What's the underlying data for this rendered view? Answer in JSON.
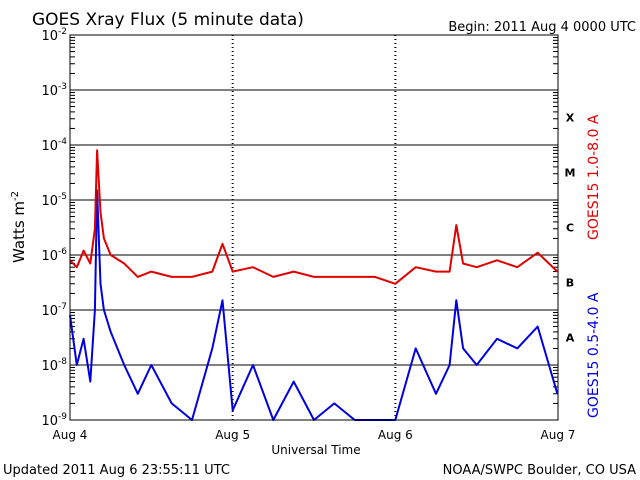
{
  "header": {
    "title": "GOES Xray Flux (5 minute data)",
    "begin": "Begin:  2011 Aug 4 0000 UTC"
  },
  "footer": {
    "updated": "Updated 2011 Aug  6 23:55:11 UTC",
    "credit": "NOAA/SWPC Boulder, CO USA"
  },
  "chart_data": {
    "type": "line",
    "title": "GOES Xray Flux (5 minute data)",
    "xlabel": "Universal Time",
    "ylabel": "Watts m",
    "ylabel_sup": "-2",
    "yscale": "log",
    "ylim": [
      1e-09,
      0.01
    ],
    "xlim": [
      "2011-08-04",
      "2011-08-07"
    ],
    "x_ticks": [
      "Aug 4",
      "Aug 5",
      "Aug 6",
      "Aug 7"
    ],
    "y_ticks": [
      {
        "base": "10",
        "exp": "-2"
      },
      {
        "base": "10",
        "exp": "-3"
      },
      {
        "base": "10",
        "exp": "-4"
      },
      {
        "base": "10",
        "exp": "-5"
      },
      {
        "base": "10",
        "exp": "-6"
      },
      {
        "base": "10",
        "exp": "-7"
      },
      {
        "base": "10",
        "exp": "-8"
      },
      {
        "base": "10",
        "exp": "-9"
      }
    ],
    "flare_classes": [
      "X",
      "M",
      "C",
      "B",
      "A"
    ],
    "grid": true,
    "series": [
      {
        "name": "GOES15 1.0-8.0 A",
        "color": "#e00000",
        "x": [
          "2011-08-04T00:00",
          "2011-08-04T01:00",
          "2011-08-04T02:00",
          "2011-08-04T03:00",
          "2011-08-04T03:40",
          "2011-08-04T04:00",
          "2011-08-04T04:30",
          "2011-08-04T05:00",
          "2011-08-04T06:00",
          "2011-08-04T08:00",
          "2011-08-04T10:00",
          "2011-08-04T12:00",
          "2011-08-04T15:00",
          "2011-08-04T18:00",
          "2011-08-04T21:00",
          "2011-08-04T22:30",
          "2011-08-05T00:00",
          "2011-08-05T03:00",
          "2011-08-05T06:00",
          "2011-08-05T09:00",
          "2011-08-05T12:00",
          "2011-08-05T15:00",
          "2011-08-05T18:00",
          "2011-08-05T21:00",
          "2011-08-06T00:00",
          "2011-08-06T03:00",
          "2011-08-06T06:00",
          "2011-08-06T08:00",
          "2011-08-06T09:00",
          "2011-08-06T10:00",
          "2011-08-06T12:00",
          "2011-08-06T15:00",
          "2011-08-06T18:00",
          "2011-08-06T21:00",
          "2011-08-06T23:55"
        ],
        "y": [
          8e-07,
          6e-07,
          1.2e-06,
          7e-07,
          3e-06,
          8e-05,
          6e-06,
          2e-06,
          1e-06,
          7e-07,
          4e-07,
          5e-07,
          4e-07,
          4e-07,
          5e-07,
          1.6e-06,
          5e-07,
          6e-07,
          4e-07,
          5e-07,
          4e-07,
          4e-07,
          4e-07,
          4e-07,
          3e-07,
          6e-07,
          5e-07,
          5e-07,
          3.5e-06,
          7e-07,
          6e-07,
          8e-07,
          6e-07,
          1.1e-06,
          5e-07
        ]
      },
      {
        "name": "GOES15 0.5-4.0 A",
        "color": "#0000e0",
        "x": [
          "2011-08-04T00:00",
          "2011-08-04T01:00",
          "2011-08-04T02:00",
          "2011-08-04T03:00",
          "2011-08-04T03:40",
          "2011-08-04T04:00",
          "2011-08-04T04:30",
          "2011-08-04T05:00",
          "2011-08-04T06:00",
          "2011-08-04T08:00",
          "2011-08-04T10:00",
          "2011-08-04T12:00",
          "2011-08-04T15:00",
          "2011-08-04T18:00",
          "2011-08-04T21:00",
          "2011-08-04T22:30",
          "2011-08-05T00:00",
          "2011-08-05T03:00",
          "2011-08-05T06:00",
          "2011-08-05T09:00",
          "2011-08-05T12:00",
          "2011-08-05T15:00",
          "2011-08-05T18:00",
          "2011-08-05T21:00",
          "2011-08-06T00:00",
          "2011-08-06T03:00",
          "2011-08-06T06:00",
          "2011-08-06T08:00",
          "2011-08-06T09:00",
          "2011-08-06T10:00",
          "2011-08-06T12:00",
          "2011-08-06T15:00",
          "2011-08-06T18:00",
          "2011-08-06T21:00",
          "2011-08-06T23:55"
        ],
        "y": [
          8e-08,
          1e-08,
          3e-08,
          5e-09,
          1e-07,
          1.5e-05,
          3e-07,
          1e-07,
          4e-08,
          1e-08,
          3e-09,
          1e-08,
          2e-09,
          1e-09,
          2e-08,
          1.5e-07,
          1.5e-09,
          1e-08,
          1e-09,
          5e-09,
          1e-09,
          2e-09,
          1e-09,
          1e-09,
          1e-09,
          2e-08,
          3e-09,
          1e-08,
          1.5e-07,
          2e-08,
          1e-08,
          3e-08,
          2e-08,
          5e-08,
          3e-09
        ]
      }
    ]
  }
}
